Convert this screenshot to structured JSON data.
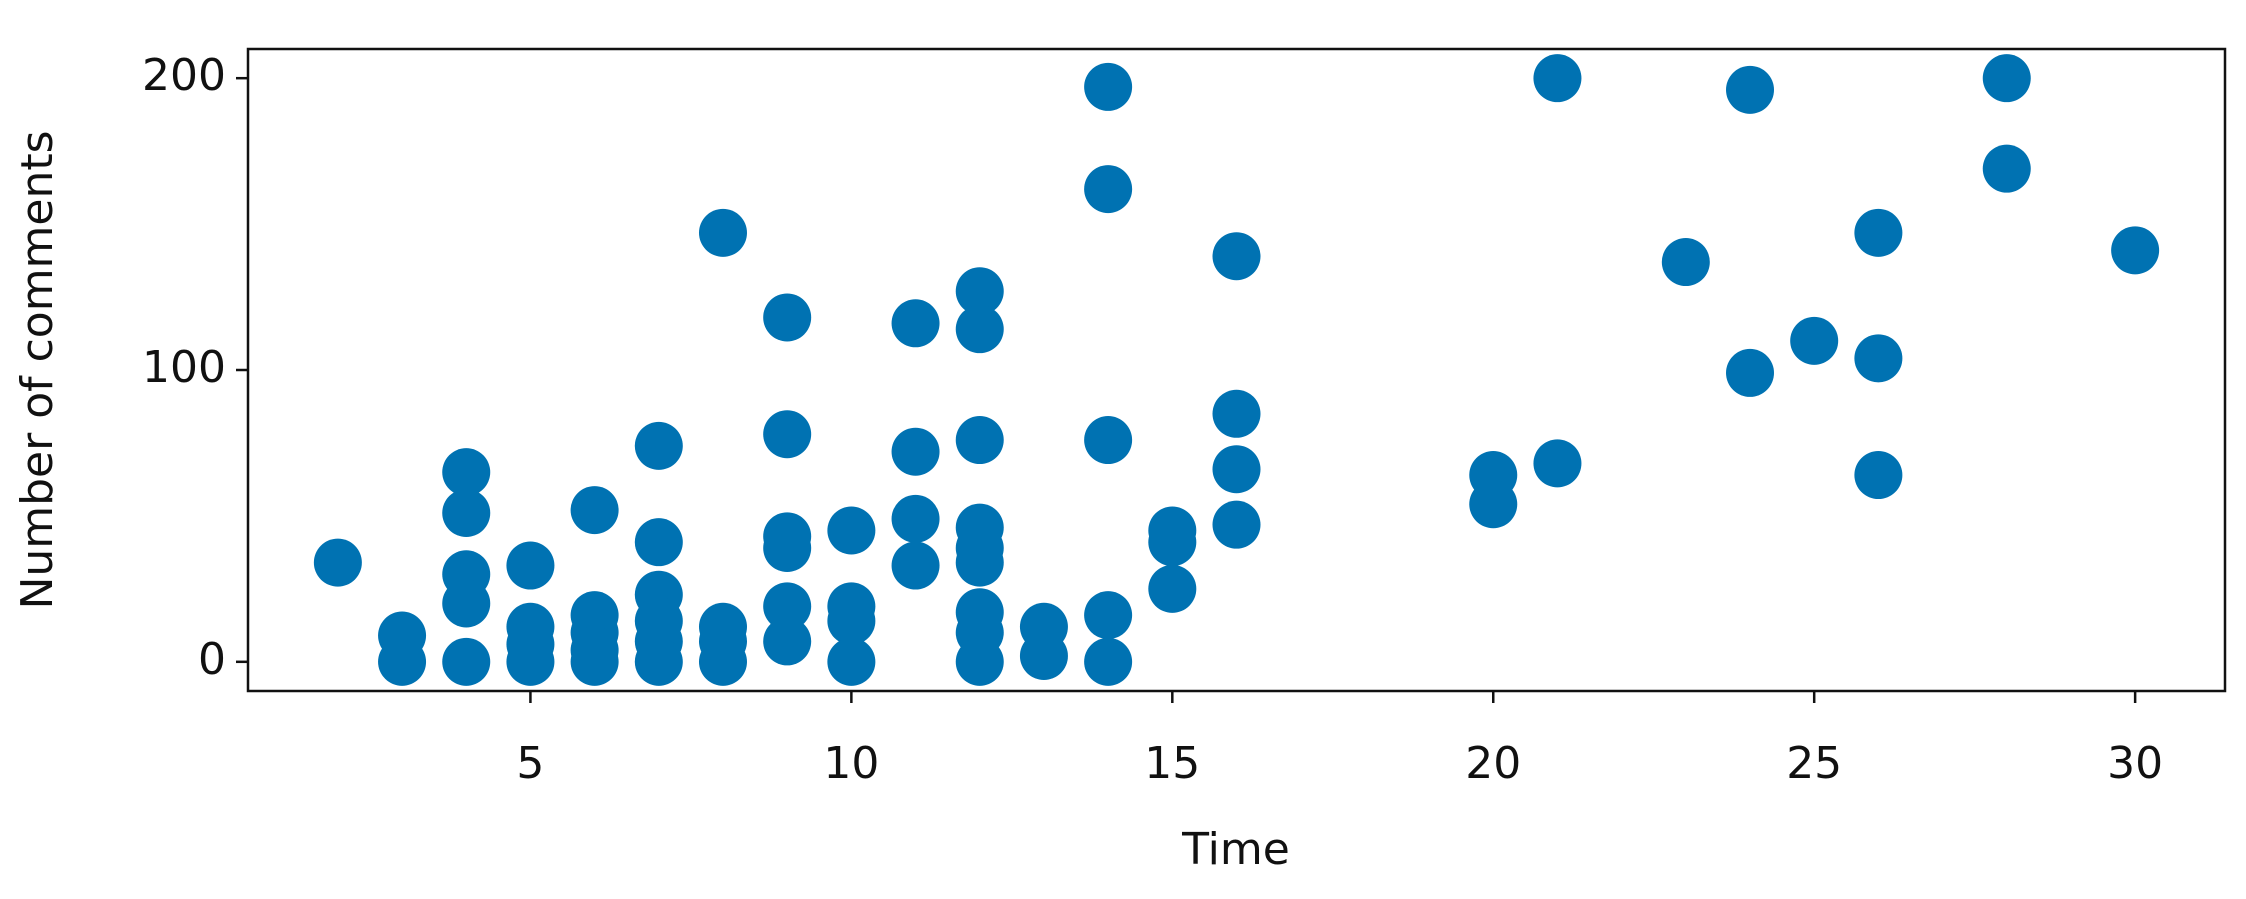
{
  "chart_data": {
    "type": "scatter",
    "x_label": "Time",
    "y_label": "Number of comments",
    "color": "#0072b2",
    "xlim": [
      0.6,
      31.4
    ],
    "ylim": [
      -10,
      210
    ],
    "xticks": [
      5,
      10,
      15,
      20,
      25,
      30
    ],
    "yticks": [
      0,
      100,
      200
    ],
    "x": [
      2,
      3,
      3,
      4,
      4,
      4,
      4,
      4,
      5,
      5,
      5,
      5,
      6,
      6,
      6,
      6,
      6,
      7,
      7,
      7,
      7,
      7,
      7,
      8,
      8,
      8,
      8,
      9,
      9,
      9,
      9,
      9,
      9,
      10,
      10,
      10,
      10,
      11,
      11,
      11,
      11,
      12,
      12,
      12,
      12,
      12,
      12,
      12,
      12,
      12,
      13,
      13,
      14,
      14,
      14,
      14,
      14,
      15,
      15,
      15,
      16,
      16,
      16,
      16,
      20,
      20,
      21,
      21,
      23,
      24,
      24,
      25,
      26,
      26,
      26,
      28,
      28,
      30
    ],
    "values": [
      34,
      9,
      0,
      65,
      51,
      30,
      20,
      0,
      33,
      12,
      6,
      0,
      52,
      16,
      10,
      4,
      0,
      74,
      41,
      23,
      14,
      7,
      0,
      147,
      12,
      7,
      0,
      118,
      78,
      43,
      39,
      19,
      7,
      45,
      19,
      14,
      0,
      116,
      72,
      49,
      33,
      127,
      114,
      76,
      46,
      39,
      34,
      17,
      10,
      0,
      12,
      2,
      197,
      162,
      76,
      16,
      0,
      45,
      41,
      25,
      139,
      85,
      66,
      47,
      64,
      54,
      200,
      68,
      137,
      196,
      99,
      110,
      147,
      104,
      64,
      200,
      169,
      141
    ]
  }
}
